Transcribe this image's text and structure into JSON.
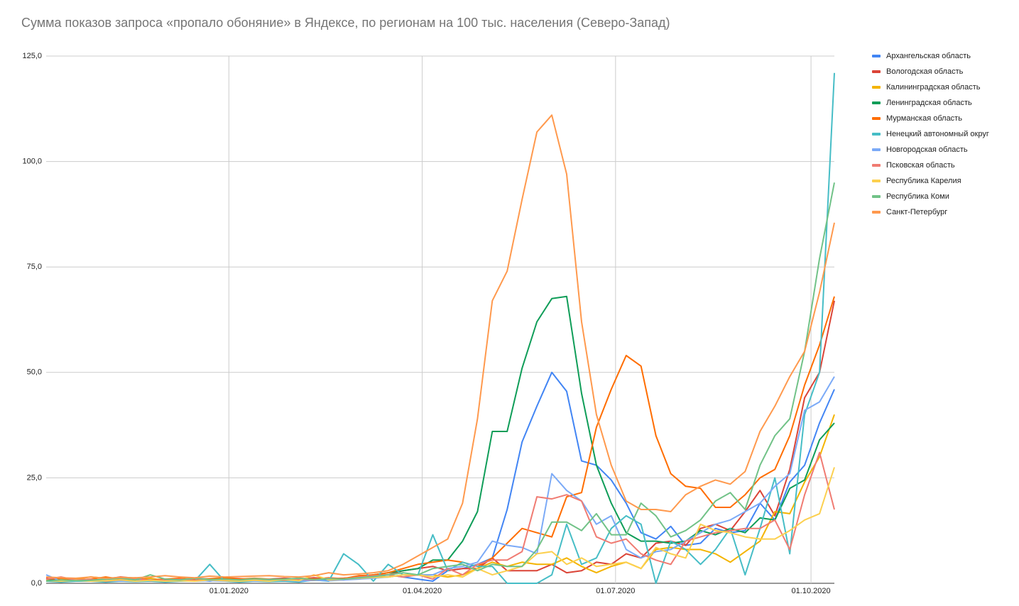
{
  "chart_data": {
    "type": "line",
    "title": "Сумма показов запроса «пропало обоняние» в Яндексе, по регионам на 100 тыс. населения (Северо-Запад)",
    "x": [
      "07.10.2019",
      "14.10.2019",
      "21.10.2019",
      "28.10.2019",
      "04.11.2019",
      "11.11.2019",
      "18.11.2019",
      "25.11.2019",
      "02.12.2019",
      "09.12.2019",
      "16.12.2019",
      "23.12.2019",
      "30.12.2019",
      "06.01.2020",
      "13.01.2020",
      "20.01.2020",
      "27.01.2020",
      "03.02.2020",
      "10.02.2020",
      "17.02.2020",
      "24.02.2020",
      "02.03.2020",
      "09.03.2020",
      "16.03.2020",
      "23.03.2020",
      "30.03.2020",
      "06.04.2020",
      "13.04.2020",
      "20.04.2020",
      "27.04.2020",
      "04.05.2020",
      "11.05.2020",
      "18.05.2020",
      "25.05.2020",
      "01.06.2020",
      "08.06.2020",
      "15.06.2020",
      "22.06.2020",
      "29.06.2020",
      "06.07.2020",
      "13.07.2020",
      "20.07.2020",
      "27.07.2020",
      "03.08.2020",
      "10.08.2020",
      "17.08.2020",
      "24.08.2020",
      "31.08.2020",
      "07.09.2020",
      "14.09.2020",
      "21.09.2020",
      "28.09.2020",
      "05.10.2020",
      "12.10.2020"
    ],
    "xlim": [
      "07.10.2019",
      "12.10.2020"
    ],
    "xticks": [
      "01.01.2020",
      "01.04.2020",
      "01.07.2020",
      "01.10.2020"
    ],
    "ylim": [
      0,
      125
    ],
    "yticks": [
      {
        "value": 0,
        "label": "0,0"
      },
      {
        "value": 25,
        "label": "25,0"
      },
      {
        "value": 50,
        "label": "50,0"
      },
      {
        "value": 75,
        "label": "75,0"
      },
      {
        "value": 100,
        "label": "100,0"
      },
      {
        "value": 125,
        "label": "125,0"
      }
    ],
    "grid": true,
    "legend": "right",
    "series": [
      {
        "name": "Архангельская область",
        "color": "#4285f4",
        "values": [
          1,
          0.5,
          0.7,
          0.5,
          0.8,
          0.6,
          0.5,
          0.7,
          0.5,
          0.6,
          0.8,
          0.5,
          1,
          0.7,
          0.6,
          0.5,
          0.8,
          0.6,
          0.7,
          1,
          0.8,
          1.2,
          1.5,
          2,
          1.5,
          1,
          0.5,
          3,
          3.5,
          4.5,
          6,
          17.5,
          33.5,
          42,
          50,
          45.5,
          29,
          28,
          24.5,
          19,
          12,
          10.5,
          13.5,
          9,
          9.5,
          13,
          12,
          12.5,
          19,
          15,
          24,
          28,
          38,
          46
        ]
      },
      {
        "name": "Вологодская область",
        "color": "#db4437",
        "values": [
          1.2,
          0.8,
          1,
          0.7,
          1,
          1.5,
          1.2,
          0.8,
          1,
          0.9,
          1.2,
          1,
          1.3,
          1.1,
          0.9,
          1,
          1.2,
          1,
          1.3,
          1.1,
          1.2,
          1.5,
          2,
          2,
          3,
          3.5,
          4,
          3,
          3.5,
          3.5,
          6,
          3,
          3,
          3,
          4.5,
          2.5,
          3,
          5,
          4.5,
          7,
          6,
          9.5,
          10,
          9,
          13,
          14,
          12.5,
          17,
          22,
          16,
          27,
          44,
          50,
          67
        ]
      },
      {
        "name": "Калининградская область",
        "color": "#f4b400",
        "values": [
          0.5,
          0.8,
          1,
          1.5,
          1.2,
          1,
          0.8,
          1.2,
          0.6,
          0.8,
          1,
          0.7,
          0.9,
          0.8,
          0.6,
          0.8,
          1,
          0.7,
          0.9,
          1.2,
          1,
          1.3,
          1.5,
          1.5,
          2,
          2,
          2,
          1.5,
          2,
          3.5,
          5,
          4,
          5,
          4.5,
          4.5,
          6,
          4,
          2.5,
          4,
          5,
          3.5,
          8,
          8.5,
          8,
          8,
          7,
          5,
          7.5,
          10,
          17,
          16.5,
          24,
          30,
          40
        ]
      },
      {
        "name": "Ленинградская область",
        "color": "#0f9d58",
        "values": [
          0.8,
          0.6,
          0.7,
          0.9,
          0.6,
          0.8,
          0.7,
          0.6,
          0.8,
          0.7,
          0.9,
          0.8,
          0.7,
          0.9,
          0.8,
          1,
          0.9,
          0.8,
          1,
          0.9,
          1.1,
          1.5,
          2,
          2.5,
          3,
          3.5,
          5.5,
          5.5,
          10,
          17,
          36,
          36,
          51,
          62,
          67.5,
          68,
          45,
          28,
          19,
          12,
          10,
          10,
          9.5,
          10,
          12.5,
          11.5,
          13,
          12,
          15.5,
          15,
          22.5,
          24.5,
          34,
          38
        ]
      },
      {
        "name": "Мурманская область",
        "color": "#ff6d00",
        "values": [
          1,
          1.2,
          0.8,
          1,
          1.5,
          1,
          1.3,
          0.8,
          1,
          1.2,
          0.9,
          1.1,
          1.3,
          1,
          1.2,
          1,
          0.8,
          1.2,
          1,
          1.3,
          1.1,
          1.8,
          2,
          2.5,
          3.5,
          4.5,
          5,
          5.5,
          5,
          4,
          6,
          9.5,
          13,
          12,
          11,
          20.5,
          21.5,
          37,
          46,
          54,
          51.5,
          35,
          26,
          23,
          22.5,
          18,
          18,
          21,
          25,
          27,
          35,
          47,
          56.5,
          68
        ]
      },
      {
        "name": "Ненецкий автономный округ",
        "color": "#46bdc6",
        "values": [
          0.5,
          0.3,
          0.5,
          0.5,
          0.3,
          0.5,
          0.4,
          0.5,
          0.3,
          0.5,
          0.6,
          4.5,
          0.5,
          0.3,
          0.5,
          0.4,
          0.5,
          0.3,
          0.8,
          0.5,
          7,
          4.5,
          0.5,
          4.5,
          2,
          2,
          11.5,
          3,
          5,
          4,
          4,
          0,
          0,
          0,
          2,
          14,
          4.5,
          6,
          13,
          16,
          14,
          0,
          10,
          8,
          4.5,
          8,
          13,
          2,
          13,
          25,
          7,
          40,
          50,
          121
        ]
      },
      {
        "name": "Новгородская область",
        "color": "#7baaf7",
        "values": [
          2,
          0.5,
          0.8,
          0.5,
          0.7,
          0.5,
          0.6,
          0.8,
          0.5,
          0.7,
          0.5,
          0.6,
          0.5,
          0.7,
          0.5,
          0.6,
          0.8,
          0.5,
          0.7,
          0.6,
          0.8,
          1,
          1.2,
          1.5,
          2,
          2,
          2,
          3.5,
          4,
          5,
          10,
          9,
          8.5,
          7,
          26,
          22,
          19.5,
          14,
          16,
          8,
          6,
          7.5,
          8,
          10,
          12,
          14,
          15,
          17,
          19,
          23,
          26,
          41,
          43,
          49
        ]
      },
      {
        "name": "Псковская область",
        "color": "#f07b72",
        "values": [
          1,
          1.5,
          0.8,
          1,
          0.5,
          0.8,
          1.2,
          0.6,
          0.8,
          1,
          0.7,
          0.9,
          0.8,
          0.6,
          0.9,
          1,
          0.7,
          1,
          0.8,
          1.2,
          1,
          1.5,
          1.8,
          2,
          1.5,
          2,
          1,
          3.5,
          2,
          4.5,
          5.5,
          5.5,
          7.5,
          20.5,
          20,
          21,
          19.5,
          11,
          9.5,
          10.5,
          7,
          5.5,
          4.5,
          10,
          11,
          12,
          12.5,
          13,
          13,
          15,
          8,
          21,
          31,
          17.5
        ]
      },
      {
        "name": "Республика Карелия",
        "color": "#fcd04f",
        "values": [
          0.6,
          0.5,
          0.7,
          0.5,
          0.6,
          0.8,
          0.5,
          0.7,
          0.5,
          0.6,
          0.5,
          0.8,
          0.6,
          0.5,
          0.7,
          0.5,
          0.9,
          0.6,
          2,
          0.8,
          1,
          1.2,
          1.4,
          1.5,
          2,
          2,
          1.5,
          2,
          1.5,
          3.5,
          2,
          3,
          4,
          7,
          7.5,
          4.5,
          6,
          4,
          4.5,
          5,
          3.5,
          8.5,
          7,
          6,
          14,
          12.5,
          12,
          11,
          10.5,
          10.5,
          12.5,
          15,
          16.5,
          27.5
        ]
      },
      {
        "name": "Республика Коми",
        "color": "#71c287",
        "values": [
          0.5,
          0.8,
          0.6,
          0.7,
          1,
          1.2,
          0.8,
          2,
          1,
          0.8,
          1.2,
          0.9,
          1,
          0.8,
          1.1,
          0.9,
          1,
          1.2,
          0.9,
          1.1,
          1,
          1.3,
          1.6,
          2,
          2.5,
          2,
          3.5,
          4,
          4.5,
          3,
          4.5,
          4,
          4,
          8,
          14.5,
          14.5,
          12.5,
          16.5,
          11.5,
          11.5,
          19,
          16,
          11,
          12.5,
          15,
          19.5,
          21.5,
          17.5,
          28,
          35,
          39,
          55,
          77,
          95
        ]
      },
      {
        "name": "Санкт-Петербург",
        "color": "#ff994d",
        "values": [
          1.5,
          1.3,
          1.2,
          1.5,
          1.2,
          1.4,
          1.3,
          1.5,
          1.8,
          1.5,
          1.3,
          1.7,
          1.5,
          1.6,
          1.7,
          1.8,
          1.6,
          1.5,
          1.8,
          2.5,
          2,
          2.2,
          2.5,
          3,
          4.5,
          6.5,
          8.5,
          10.5,
          19,
          39,
          67,
          74,
          91,
          107,
          111,
          97,
          62,
          40,
          28,
          19.5,
          17.5,
          17.5,
          17,
          21,
          23,
          24.5,
          23.5,
          26.5,
          36,
          42,
          49,
          55,
          69,
          85.5
        ]
      }
    ]
  }
}
